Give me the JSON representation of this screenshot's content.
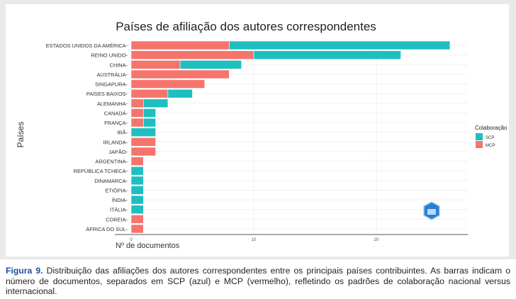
{
  "chart_data": {
    "type": "bar",
    "orientation": "horizontal",
    "stacked": true,
    "title": "Países de afiliação dos autores correspondentes",
    "xlabel": "Nº de documentos",
    "ylabel": "Países",
    "xlim": [
      0,
      27
    ],
    "xticks": [
      0,
      10,
      20
    ],
    "grid": true,
    "legend": {
      "title": "Colaboração",
      "placement": "right"
    },
    "categories": [
      "ESTADOS UNIDOS DA AMÉRICA",
      "REINO UNIDO",
      "CHINA",
      "AUSTRÁLIA",
      "SINGAPURA",
      "PAÍSES BAIXOS",
      "ALEMANHA",
      "CANADÁ",
      "FRANÇA",
      "IRÃ",
      "IRLANDA",
      "JAPÃO",
      "ARGENTINA",
      "REPÚBLICA TCHECA",
      "DINAMARCA",
      "ETIÓPIA",
      "ÍNDIA",
      "ITÁLIA",
      "COREIA",
      "ÁFRICA DO SUL"
    ],
    "series": [
      {
        "name": "SCP",
        "color": "#1dbfc1",
        "values": [
          18,
          12,
          5,
          0,
          0,
          2,
          2,
          1,
          1,
          2,
          0,
          0,
          0,
          1,
          1,
          1,
          1,
          1,
          0,
          0
        ]
      },
      {
        "name": "MCP",
        "color": "#f5746c",
        "values": [
          8,
          10,
          4,
          8,
          6,
          3,
          1,
          1,
          1,
          0,
          2,
          2,
          1,
          0,
          0,
          0,
          0,
          0,
          1,
          1
        ]
      }
    ]
  },
  "caption": {
    "label": "Figura 9.",
    "text": " Distribuição das afiliações dos autores correspondentes entre os principais países contribuintes. As barras indicam o número de documentos, separados em SCP (azul) e MCP (vermelho), refletindo os padrões de colaboração nacional versus internacional."
  }
}
